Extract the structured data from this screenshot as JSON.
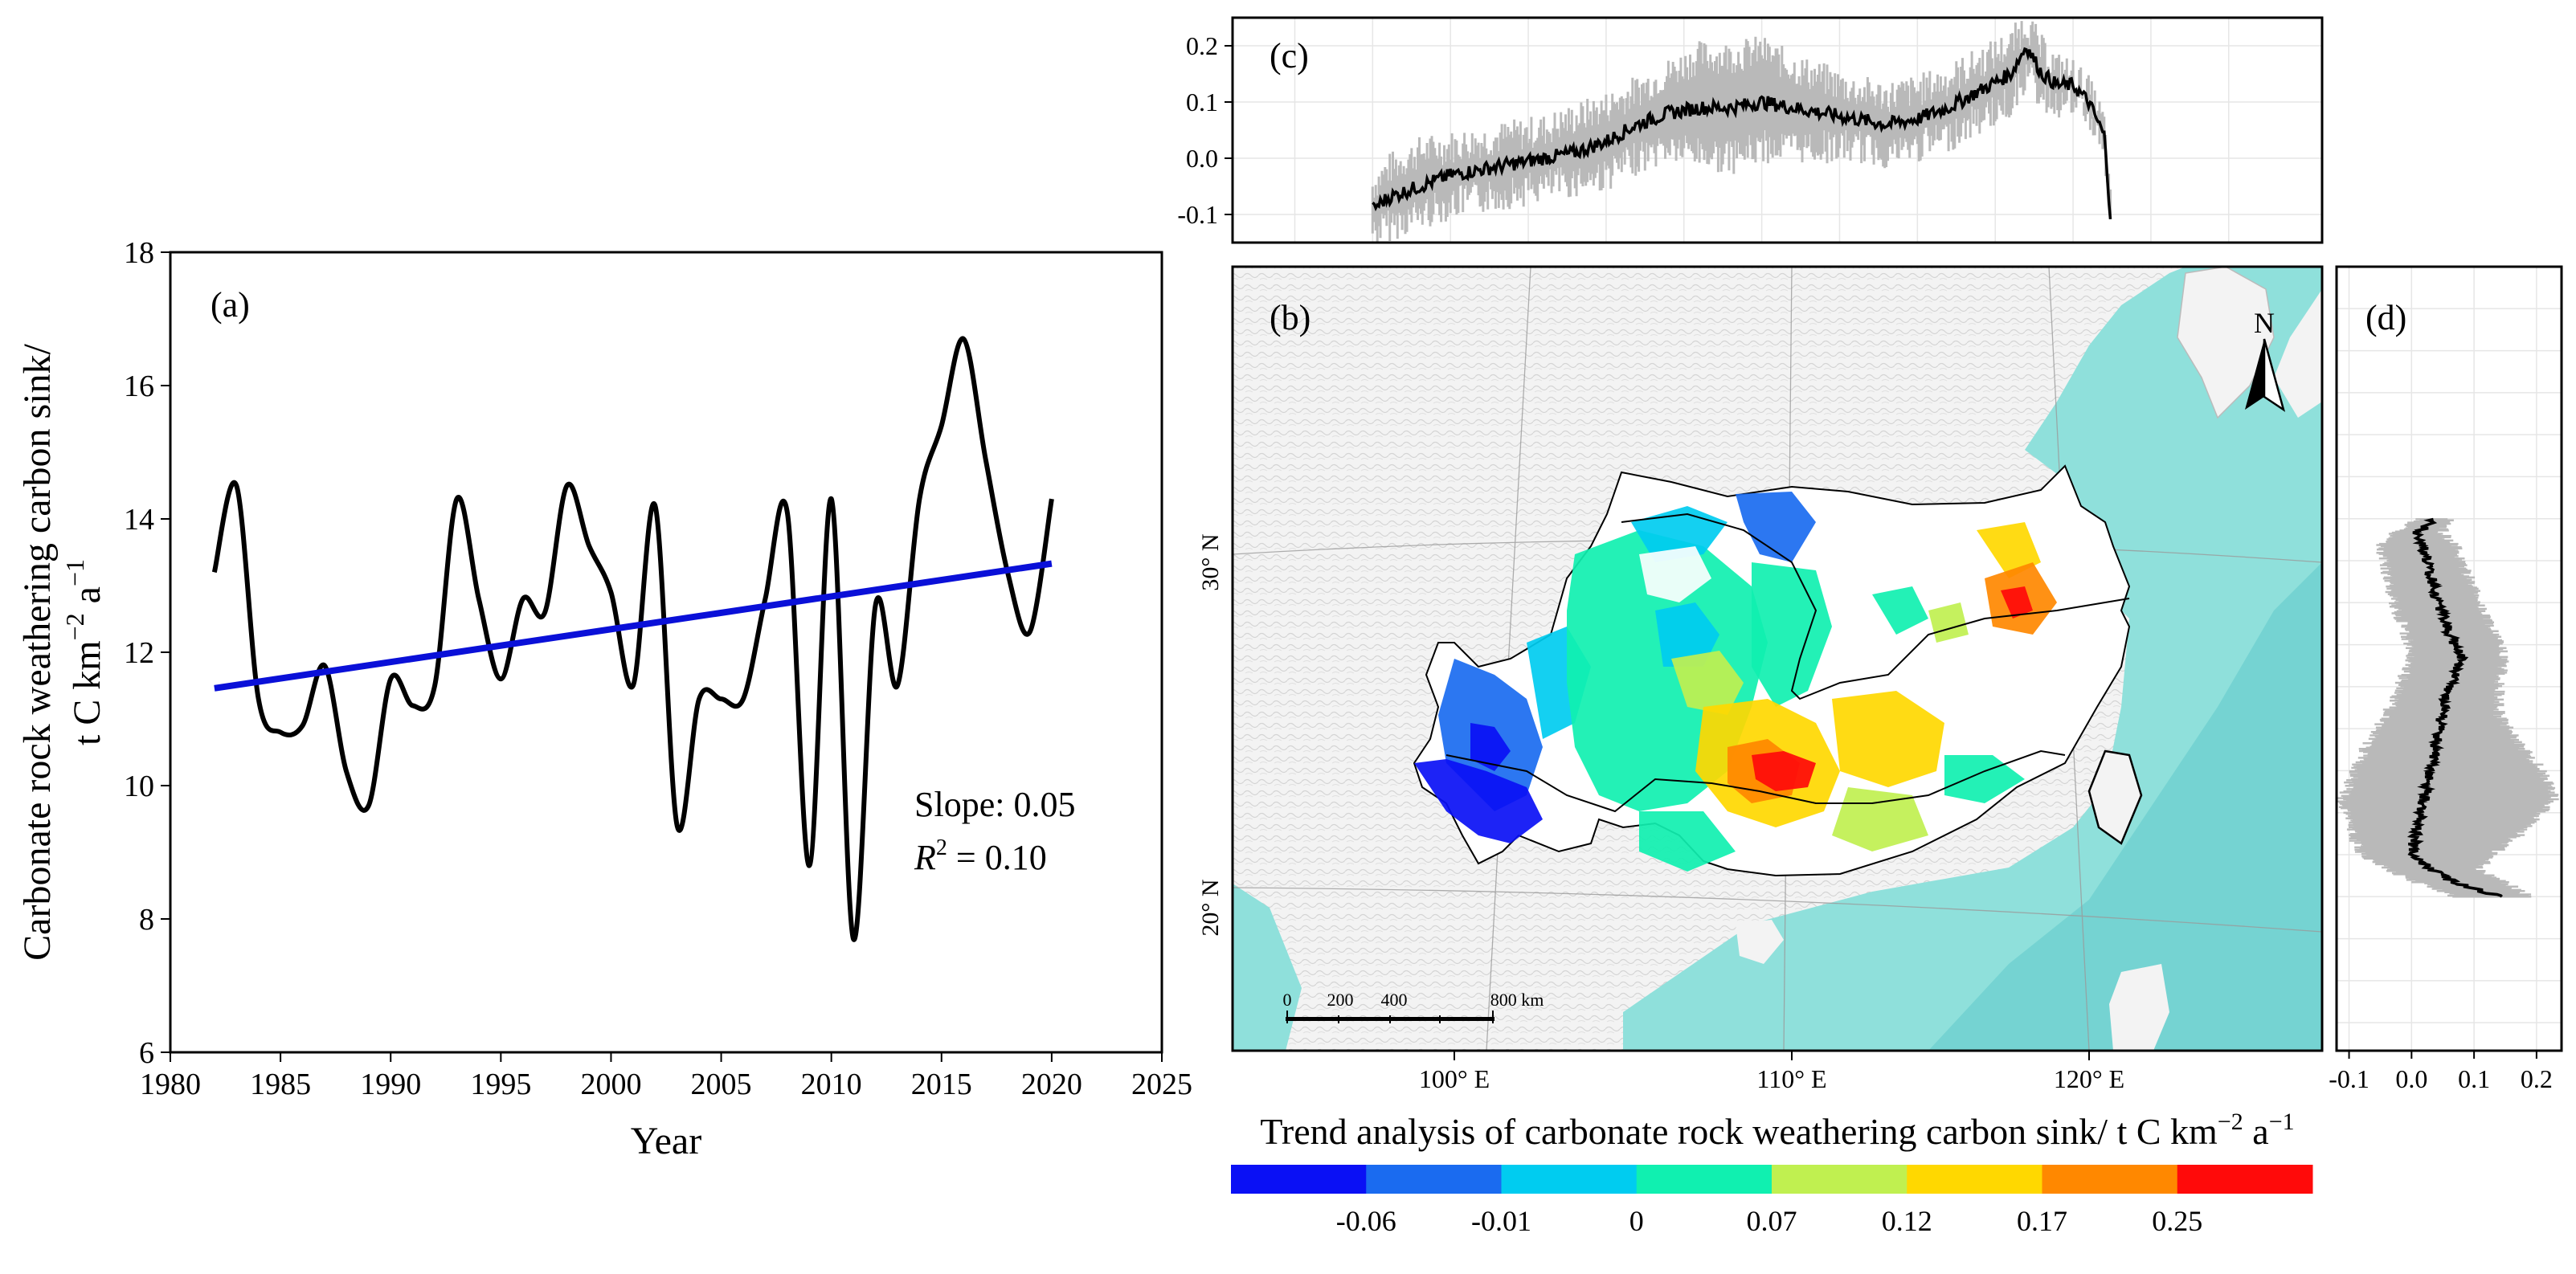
{
  "chart_data": [
    {
      "panel_label": "(a)",
      "type": "line",
      "xlabel": "Year",
      "ylabel_line1": "Carbonate rock weathering carbon sink/",
      "ylabel_line2": "t C km",
      "ylabel_exp1": "−2",
      "ylabel_mid": " a",
      "ylabel_exp2": "−1",
      "xlim": [
        1980,
        2025
      ],
      "ylim": [
        6,
        18
      ],
      "xticks": [
        1980,
        1985,
        1990,
        1995,
        2000,
        2005,
        2010,
        2015,
        2020,
        2025
      ],
      "yticks": [
        6,
        8,
        10,
        12,
        14,
        16,
        18
      ],
      "series": [
        {
          "name": "Carbonate rock weathering carbon sink",
          "color": "#000000",
          "x": [
            1982,
            1983,
            1984,
            1985,
            1986,
            1987,
            1988,
            1989,
            1990,
            1991,
            1992,
            1993,
            1994,
            1995,
            1996,
            1997,
            1998,
            1999,
            2000,
            2001,
            2002,
            2003,
            2004,
            2005,
            2006,
            2007,
            2008,
            2009,
            2010,
            2011,
            2012,
            2013,
            2014,
            2015,
            2016,
            2017,
            2018,
            2019,
            2020
          ],
          "y": [
            13.2,
            14.5,
            11.3,
            10.8,
            10.9,
            11.8,
            10.2,
            9.7,
            11.6,
            11.2,
            11.5,
            14.3,
            12.8,
            11.6,
            12.8,
            12.6,
            14.5,
            13.6,
            12.9,
            11.5,
            14.2,
            9.4,
            11.3,
            11.3,
            11.3,
            12.8,
            14.1,
            8.8,
            14.3,
            7.7,
            12.7,
            11.5,
            14.3,
            15.4,
            16.7,
            14.9,
            13.2,
            12.3,
            14.3
          ]
        },
        {
          "name": "Linear trend",
          "color": "#0a10d8",
          "x": [
            1982,
            2020
          ],
          "y": [
            11.46,
            13.33
          ]
        }
      ],
      "annotations": {
        "slope_text": "Slope: 0.05",
        "r2_symbol": "R",
        "r2_exp": "2",
        "r2_rest": " = 0.10"
      }
    },
    {
      "panel_label": "(b)",
      "type": "heatmap",
      "description_title": "Trend analysis of carbonate rock weathering carbon sink/  t C km",
      "title_exp1": "−2",
      "title_mid": " a",
      "title_exp2": "−1",
      "lon_ticks": [
        "100° E",
        "110° E",
        "120° E"
      ],
      "lat_ticks": [
        "30° N",
        "20° N"
      ],
      "north_label": "N",
      "scalebar_labels": [
        "0",
        "200",
        "400",
        "800 km"
      ],
      "colorbar": {
        "colors": [
          "#0a10f5",
          "#1a6bf0",
          "#00ccf0",
          "#10f0b0",
          "#c0f050",
          "#ffd800",
          "#ff8800",
          "#ff0a0a"
        ],
        "labels": [
          "-0.06",
          "-0.01",
          "0",
          "0.07",
          "0.12",
          "0.17",
          "0.25"
        ]
      }
    },
    {
      "panel_label": "(c)",
      "type": "line",
      "description": "Zonal mean trend by longitude with spread band",
      "xlim": [
        93,
        128
      ],
      "ylim": [
        -0.15,
        0.25
      ],
      "yticks": [
        "0.2",
        "0.1",
        "0.0",
        "-0.1"
      ],
      "ytick_values": [
        0.2,
        0.1,
        0.0,
        -0.1
      ],
      "series": [
        {
          "name": "mean",
          "x": [
            97.5,
            98,
            99,
            100,
            101,
            102,
            103,
            104,
            105,
            106,
            107,
            108,
            109,
            110,
            111,
            112,
            113,
            114,
            115,
            116,
            117,
            118,
            118.5,
            119,
            119.5,
            120,
            120.5,
            121,
            121.2
          ],
          "y": [
            -0.09,
            -0.07,
            -0.05,
            -0.03,
            -0.02,
            -0.01,
            0.0,
            0.01,
            0.03,
            0.06,
            0.08,
            0.09,
            0.09,
            0.1,
            0.09,
            0.08,
            0.07,
            0.06,
            0.07,
            0.09,
            0.12,
            0.15,
            0.2,
            0.15,
            0.13,
            0.13,
            0.1,
            0.04,
            -0.1
          ],
          "band_upper": [
            -0.05,
            -0.02,
            0.01,
            0.02,
            0.03,
            0.04,
            0.05,
            0.07,
            0.09,
            0.12,
            0.15,
            0.18,
            0.18,
            0.19,
            0.16,
            0.14,
            0.12,
            0.11,
            0.12,
            0.14,
            0.17,
            0.2,
            0.24,
            0.19,
            0.16,
            0.15,
            0.12,
            0.06,
            -0.08
          ],
          "band_lower": [
            -0.13,
            -0.12,
            -0.1,
            -0.08,
            -0.07,
            -0.06,
            -0.05,
            -0.04,
            -0.03,
            0.0,
            0.02,
            0.01,
            0.0,
            0.02,
            0.02,
            0.02,
            0.02,
            0.01,
            0.02,
            0.04,
            0.07,
            0.1,
            0.15,
            0.11,
            0.1,
            0.1,
            0.08,
            0.02,
            -0.12
          ]
        }
      ]
    },
    {
      "panel_label": "(d)",
      "type": "line",
      "description": "Meridional mean trend by latitude with spread band",
      "xlim": [
        -0.12,
        0.24
      ],
      "ylim": [
        15,
        43
      ],
      "xticks": [
        "-0.1",
        "0.0",
        "0.1",
        "0.2"
      ],
      "xtick_values": [
        -0.1,
        0.0,
        0.1,
        0.2
      ],
      "series": [
        {
          "name": "mean",
          "lat": [
            34,
            33.5,
            33,
            32,
            31,
            30,
            29,
            28,
            27,
            26,
            25,
            24,
            23,
            22,
            21.5,
            21,
            20.5
          ],
          "x": [
            0.04,
            0.01,
            0.02,
            0.03,
            0.04,
            0.06,
            0.08,
            0.06,
            0.05,
            0.04,
            0.03,
            0.02,
            0.01,
            0.0,
            0.03,
            0.07,
            0.14
          ],
          "band_lower": [
            0.02,
            -0.02,
            -0.04,
            -0.03,
            -0.02,
            0.0,
            0.01,
            -0.01,
            -0.03,
            -0.06,
            -0.08,
            -0.1,
            -0.09,
            -0.07,
            -0.03,
            0.02,
            0.08
          ],
          "band_upper": [
            0.05,
            0.04,
            0.06,
            0.08,
            0.1,
            0.12,
            0.14,
            0.13,
            0.13,
            0.16,
            0.2,
            0.22,
            0.18,
            0.12,
            0.1,
            0.14,
            0.18
          ]
        }
      ]
    }
  ]
}
